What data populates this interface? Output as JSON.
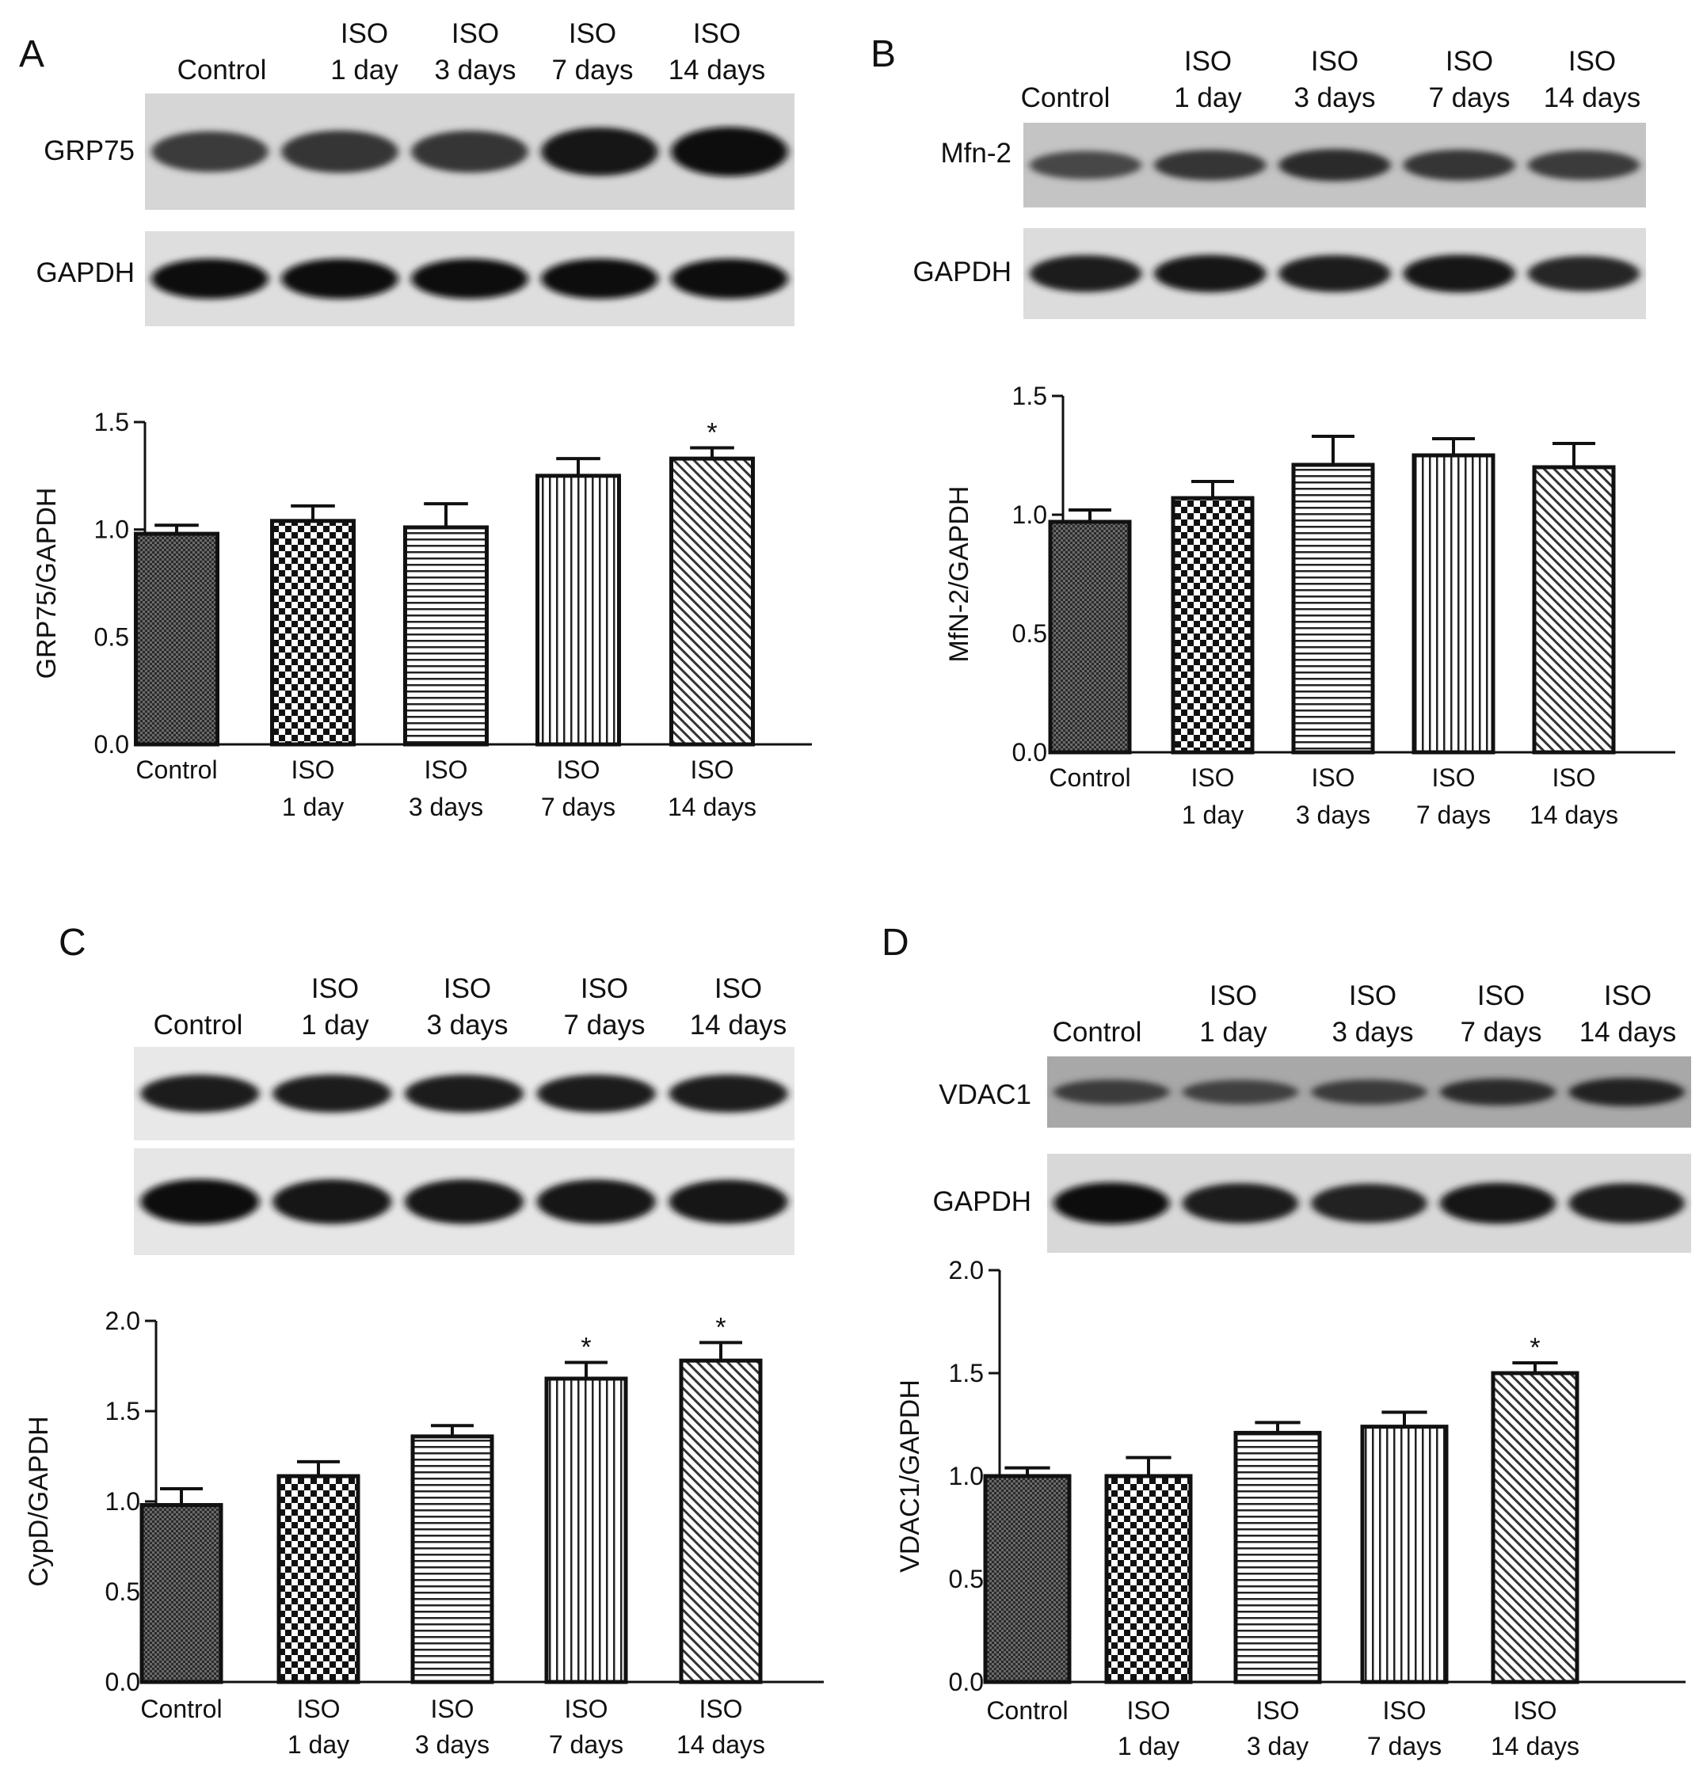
{
  "figure": {
    "panels": [
      {
        "letter": "A",
        "lanes": [
          [
            "Control"
          ],
          [
            "ISO",
            "1 day"
          ],
          [
            "ISO",
            "3 days"
          ],
          [
            "ISO",
            "7 days"
          ],
          [
            "ISO",
            "14 days"
          ]
        ],
        "blots": [
          {
            "label": "GRP75",
            "bands": [
              0.55,
              0.62,
              0.6,
              0.9,
              0.95
            ],
            "background": "#d6d6d6"
          },
          {
            "label": "GAPDH",
            "bands": [
              0.95,
              0.95,
              0.95,
              0.95,
              0.95
            ],
            "background": "#dedede"
          }
        ]
      },
      {
        "letter": "B",
        "lanes": [
          [
            "Control"
          ],
          [
            "ISO",
            "1 day"
          ],
          [
            "ISO",
            "3 days"
          ],
          [
            "ISO",
            "7 days"
          ],
          [
            "ISO",
            "14 days"
          ]
        ],
        "blots": [
          {
            "label": "Mfn-2",
            "bands": [
              0.45,
              0.6,
              0.7,
              0.62,
              0.55
            ],
            "background": "#c4c4c4"
          },
          {
            "label": "GAPDH",
            "bands": [
              0.85,
              0.88,
              0.85,
              0.9,
              0.75
            ],
            "background": "#dcdcdc"
          }
        ]
      },
      {
        "letter": "C",
        "lanes": [
          [
            "Control"
          ],
          [
            "ISO",
            "1 day"
          ],
          [
            "ISO",
            "3 days"
          ],
          [
            "ISO",
            "7 days"
          ],
          [
            "ISO",
            "14 days"
          ]
        ],
        "blots": [
          {
            "label": "",
            "bands": [
              0.85,
              0.85,
              0.85,
              0.85,
              0.85
            ],
            "background": "#e8e8e8"
          },
          {
            "label": "",
            "bands": [
              0.95,
              0.92,
              0.92,
              0.9,
              0.88
            ],
            "background": "#e6e6e6"
          }
        ]
      },
      {
        "letter": "D",
        "lanes": [
          [
            "Control"
          ],
          [
            "ISO",
            "1 day"
          ],
          [
            "ISO",
            "3 days"
          ],
          [
            "ISO",
            "7 days"
          ],
          [
            "ISO",
            "14 days"
          ]
        ],
        "blots": [
          {
            "label": "VDAC1",
            "bands": [
              0.55,
              0.5,
              0.55,
              0.7,
              0.8
            ],
            "background": "#a8a8a8"
          },
          {
            "label": "GAPDH",
            "bands": [
              0.95,
              0.85,
              0.8,
              0.9,
              0.85
            ],
            "background": "#d8d8d8"
          }
        ]
      }
    ]
  },
  "chart_data": [
    {
      "type": "bar",
      "categories": [
        [
          "Control"
        ],
        [
          "ISO",
          "1 day"
        ],
        [
          "ISO",
          "3 days"
        ],
        [
          "ISO",
          "7 days"
        ],
        [
          "ISO",
          "14 days"
        ]
      ],
      "values": [
        0.98,
        1.04,
        1.01,
        1.25,
        1.33
      ],
      "errors": [
        0.04,
        0.07,
        0.11,
        0.08,
        0.05
      ],
      "significant": [
        false,
        false,
        false,
        false,
        true
      ],
      "ylabel": "GRP75/GAPDH",
      "ylim": [
        0,
        1.5
      ],
      "yticks": [
        "0.0",
        "0.5",
        "1.0",
        "1.5"
      ],
      "patterns": [
        "fine-check",
        "checker",
        "horizontal",
        "vertical",
        "diagonal"
      ],
      "significance_mark": "*"
    },
    {
      "type": "bar",
      "categories": [
        [
          "Control"
        ],
        [
          "ISO",
          "1 day"
        ],
        [
          "ISO",
          "3 days"
        ],
        [
          "ISO",
          "7 days"
        ],
        [
          "ISO",
          "14 days"
        ]
      ],
      "values": [
        0.97,
        1.07,
        1.21,
        1.25,
        1.2
      ],
      "errors": [
        0.05,
        0.07,
        0.12,
        0.07,
        0.1
      ],
      "significant": [
        false,
        false,
        false,
        false,
        false
      ],
      "ylabel": "MfN-2/GAPDH",
      "ylim": [
        0,
        1.5
      ],
      "yticks": [
        "0.0",
        "0.5",
        "1.0",
        "1.5"
      ],
      "patterns": [
        "fine-check",
        "checker",
        "horizontal",
        "vertical",
        "diagonal"
      ],
      "significance_mark": "*"
    },
    {
      "type": "bar",
      "categories": [
        [
          "Control"
        ],
        [
          "ISO",
          "1 day"
        ],
        [
          "ISO",
          "3 days"
        ],
        [
          "ISO",
          "7 days"
        ],
        [
          "ISO",
          "14 days"
        ]
      ],
      "values": [
        0.98,
        1.14,
        1.36,
        1.68,
        1.78
      ],
      "errors": [
        0.09,
        0.08,
        0.06,
        0.09,
        0.1
      ],
      "significant": [
        false,
        false,
        false,
        true,
        true
      ],
      "ylabel": "CypD/GAPDH",
      "ylim": [
        0,
        2.0
      ],
      "yticks": [
        "0.0",
        "0.5",
        "1.0",
        "1.5",
        "2.0"
      ],
      "patterns": [
        "fine-check",
        "checker",
        "horizontal",
        "vertical",
        "diagonal"
      ],
      "significance_mark": "*"
    },
    {
      "type": "bar",
      "categories": [
        [
          "Control"
        ],
        [
          "ISO",
          "1 day"
        ],
        [
          "ISO",
          "3 day"
        ],
        [
          "ISO",
          "7 days"
        ],
        [
          "ISO",
          "14 days"
        ]
      ],
      "values": [
        1.0,
        1.0,
        1.21,
        1.24,
        1.5
      ],
      "errors": [
        0.04,
        0.09,
        0.05,
        0.07,
        0.05
      ],
      "significant": [
        false,
        false,
        false,
        false,
        true
      ],
      "ylabel": "VDAC1/GAPDH",
      "ylim": [
        0,
        2.0
      ],
      "yticks": [
        "0.0",
        "0.5",
        "1.0",
        "1.5",
        "2.0"
      ],
      "patterns": [
        "fine-check",
        "checker",
        "horizontal",
        "vertical",
        "diagonal"
      ],
      "significance_mark": "*"
    }
  ]
}
